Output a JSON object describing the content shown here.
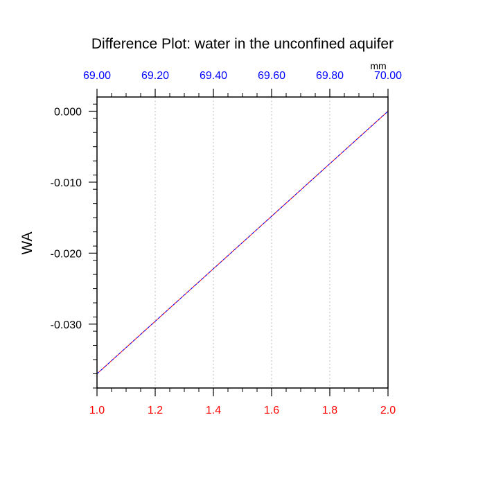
{
  "chart_data": {
    "type": "line",
    "title": "Difference Plot: water in the unconfined aquifer",
    "ylabel": "WA",
    "top_axis_unit": "mm",
    "xlim": [
      1.0,
      2.0
    ],
    "ylim": [
      -0.039,
      0.002
    ],
    "top_xlim": [
      69.0,
      70.0
    ],
    "x_ticks": [
      "1.0",
      "1.2",
      "1.4",
      "1.6",
      "1.8",
      "2.0"
    ],
    "x_tick_values": [
      1.0,
      1.2,
      1.4,
      1.6,
      1.8,
      2.0
    ],
    "top_x_ticks": [
      "69.00",
      "69.20",
      "69.40",
      "69.60",
      "69.80",
      "70.00"
    ],
    "top_x_tick_values": [
      69.0,
      69.2,
      69.4,
      69.6,
      69.8,
      70.0
    ],
    "y_ticks": [
      "0.000",
      "-0.010",
      "-0.020",
      "-0.030"
    ],
    "y_tick_values": [
      0.0,
      -0.01,
      -0.02,
      -0.03
    ],
    "grid": "vertical dotted",
    "series": [
      {
        "x": [
          1.0,
          2.0
        ],
        "y": [
          -0.037,
          0.0
        ],
        "color": "#ff0000"
      },
      {
        "x": [
          1.0,
          2.0
        ],
        "y": [
          -0.037,
          0.0
        ],
        "color": "#0000ff",
        "dash": true
      }
    ],
    "colors": {
      "bottom_tick_labels": "#ff0000",
      "top_tick_labels": "#0000ff",
      "axis": "#000000",
      "grid": "#bbbbbb"
    }
  }
}
